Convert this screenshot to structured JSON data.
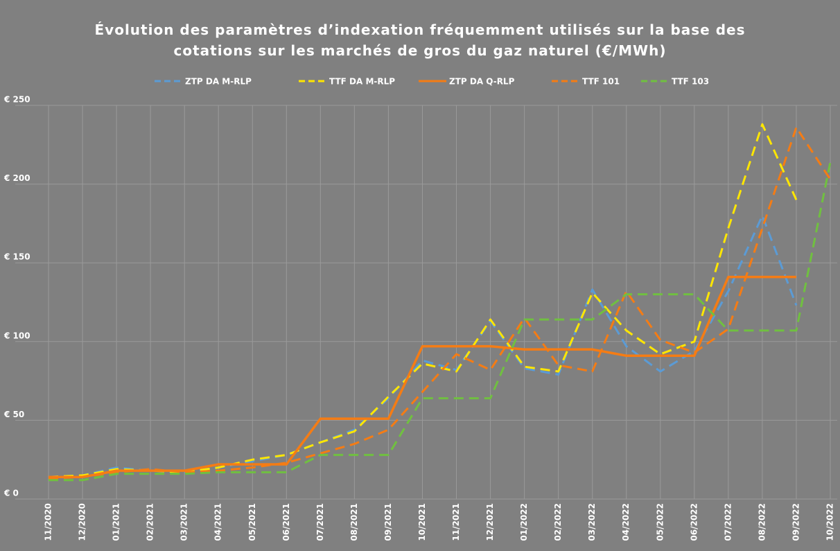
{
  "chart_data": {
    "type": "line",
    "title": "Évolution des paramètres d’indexation fréquemment utilisés sur la base des cotations sur les marchés de gros du gaz naturel (€/MWh)",
    "categories": [
      "11/2020",
      "12/2020",
      "01/2021",
      "02/2021",
      "03/2021",
      "04/2021",
      "05/2021",
      "06/2021",
      "07/2021",
      "08/2021",
      "09/2021",
      "10/2021",
      "11/2021",
      "12/2021",
      "01/2022",
      "02/2022",
      "03/2022",
      "04/2022",
      "05/2022",
      "06/2022",
      "07/2022",
      "08/2022",
      "09/2022",
      "10/2022"
    ],
    "series": [
      {
        "name": "ZTP DA M-RLP",
        "color": "#5b9bd5",
        "dashed": true,
        "values": [
          14,
          15,
          20,
          18,
          17,
          20,
          24,
          28,
          36,
          44,
          64,
          88,
          82,
          113,
          83,
          79,
          133,
          97,
          81,
          94,
          132,
          180,
          123,
          null
        ]
      },
      {
        "name": "TTF DA M-RLP",
        "color": "#ffe600",
        "dashed": true,
        "values": [
          14,
          15,
          19,
          18,
          17,
          20,
          25,
          28,
          36,
          43,
          65,
          86,
          81,
          114,
          84,
          81,
          131,
          107,
          92,
          100,
          172,
          238,
          190,
          null
        ]
      },
      {
        "name": "ZTP DA Q-RLP",
        "color": "#f57c14",
        "dashed": false,
        "values": [
          14,
          14,
          18,
          18,
          18,
          22,
          22,
          22,
          51,
          51,
          51,
          97,
          97,
          97,
          95,
          95,
          95,
          91,
          91,
          91,
          141,
          141,
          141,
          null
        ]
      },
      {
        "name": "TTF 101",
        "color": "#f57c14",
        "dashed": true,
        "values": [
          13,
          14,
          17,
          19,
          17,
          18,
          20,
          23,
          29,
          35,
          44,
          68,
          92,
          82,
          115,
          85,
          81,
          132,
          101,
          93,
          108,
          172,
          236,
          203
        ]
      },
      {
        "name": "TTF 103",
        "color": "#70c040",
        "dashed": true,
        "values": [
          12,
          12,
          16,
          16,
          16,
          17,
          17,
          17,
          28,
          28,
          28,
          64,
          64,
          64,
          114,
          114,
          114,
          130,
          130,
          130,
          107,
          107,
          107,
          214
        ]
      }
    ],
    "ylim": [
      0,
      250
    ],
    "yticks": [
      {
        "value": 0,
        "label": "€ 0"
      },
      {
        "value": 50,
        "label": "€ 50"
      },
      {
        "value": 100,
        "label": "€ 100"
      },
      {
        "value": 150,
        "label": "€ 150"
      },
      {
        "value": 200,
        "label": "€ 200"
      },
      {
        "value": 250,
        "label": "€ 250"
      }
    ],
    "grid": true
  }
}
